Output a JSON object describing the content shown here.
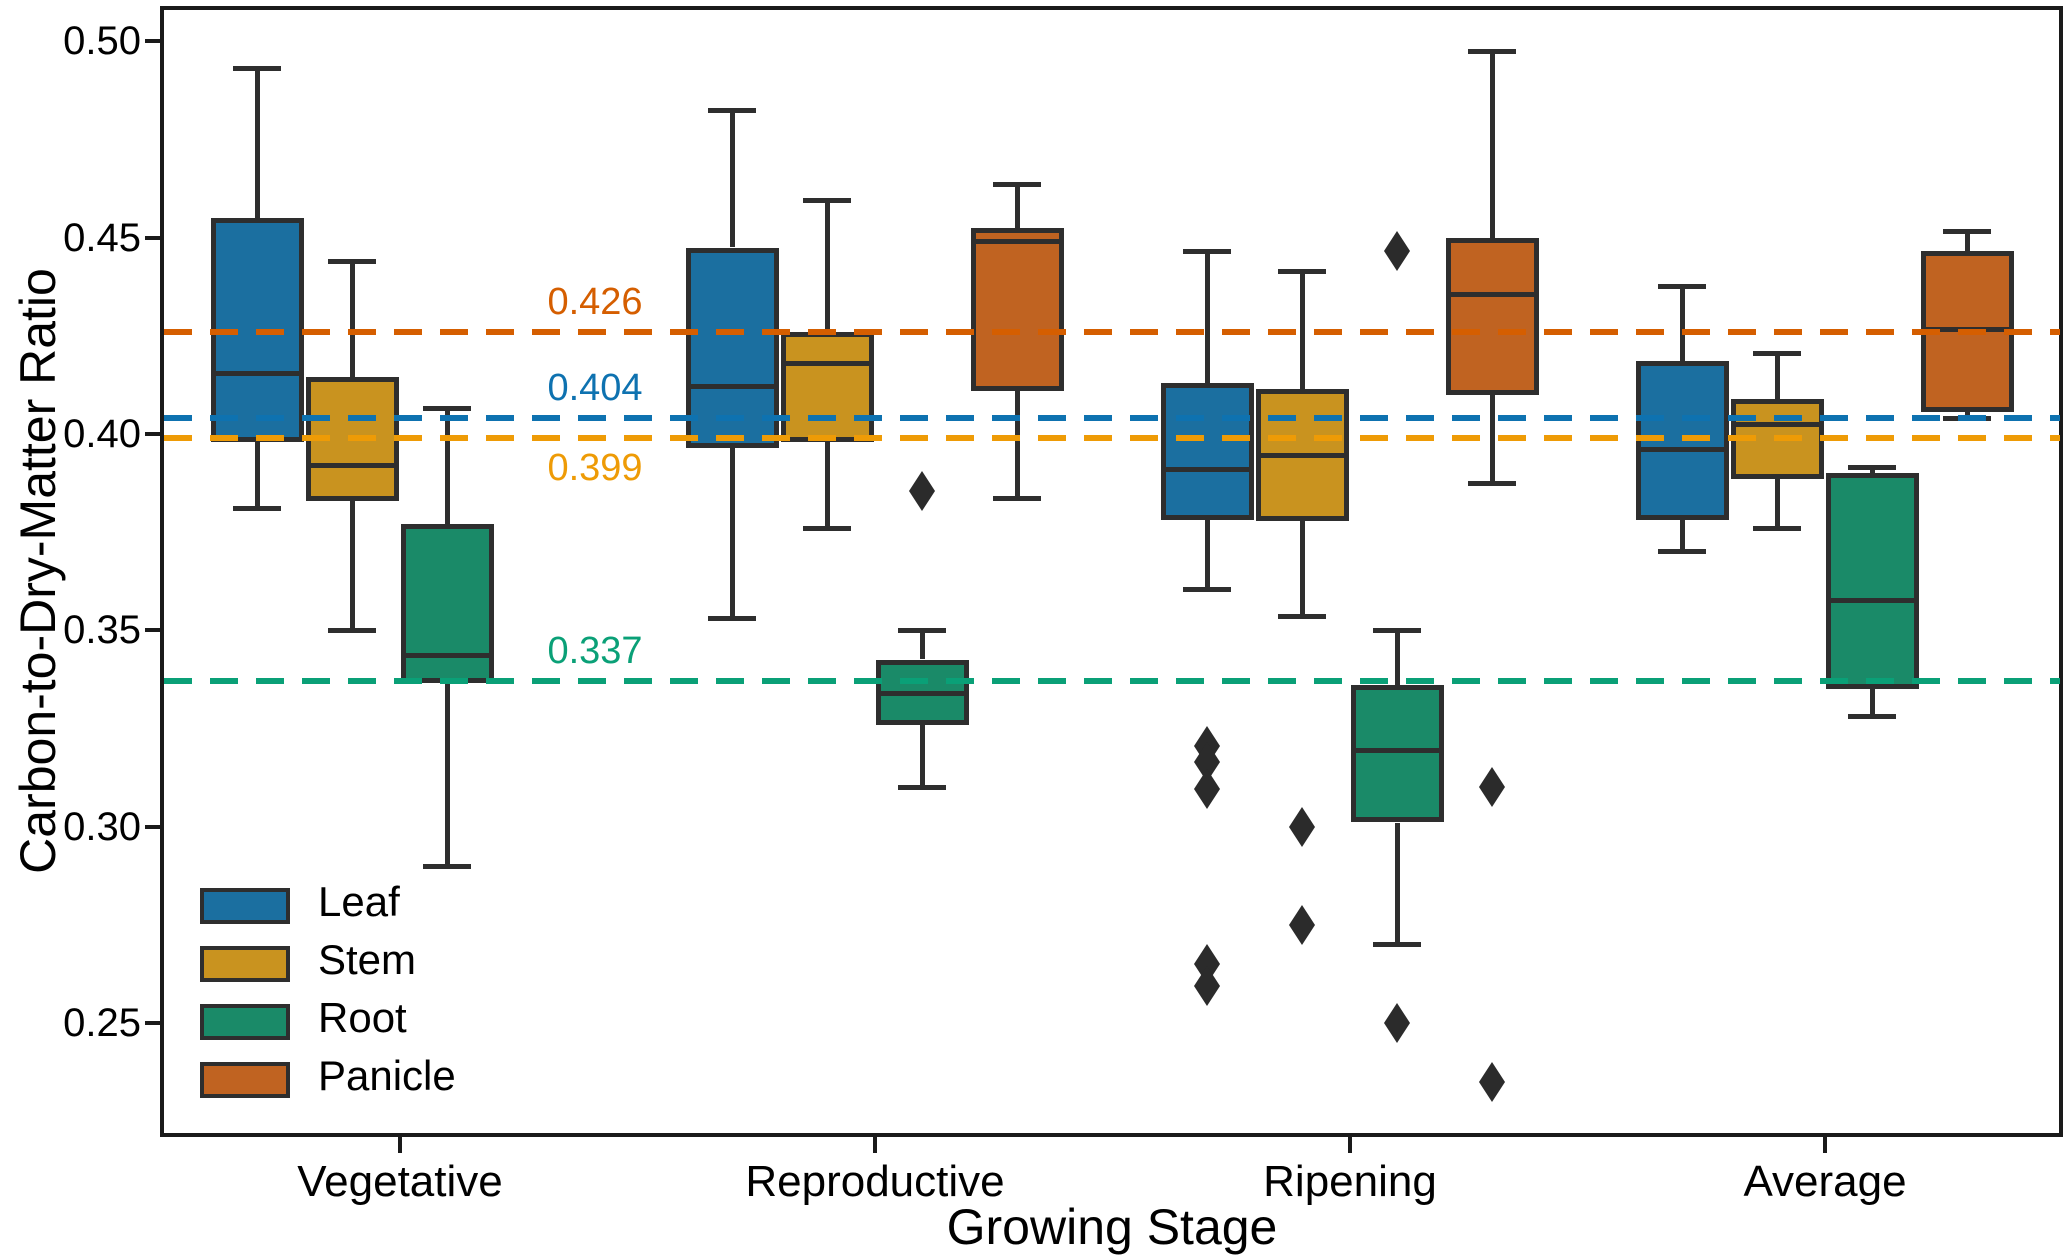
{
  "chart_data": {
    "type": "box",
    "title": "",
    "xlabel": "Growing Stage",
    "ylabel": "Carbon-to-Dry-Matter Ratio",
    "categories": [
      "Vegetative",
      "Reproductive",
      "Ripening",
      "Average"
    ],
    "yticks": [
      {
        "value": 0.25,
        "label": "0.25"
      },
      {
        "value": 0.3,
        "label": "0.30"
      },
      {
        "value": 0.35,
        "label": "0.35"
      },
      {
        "value": 0.4,
        "label": "0.40"
      },
      {
        "value": 0.45,
        "label": "0.45"
      },
      {
        "value": 0.5,
        "label": "0.50"
      }
    ],
    "ylim": [
      0.2215,
      0.5085
    ],
    "grid": false,
    "legend_position": "lower left",
    "legend_items": [
      "Leaf",
      "Stem",
      "Root",
      "Panicle"
    ],
    "series": [
      {
        "name": "Leaf",
        "line_color": "#0e72b0",
        "fill_color": "#1b6fa0",
        "boxes": [
          {
            "whislo": 0.381,
            "q1": 0.398,
            "med": 0.4155,
            "q3": 0.455,
            "whishi": 0.493,
            "fliers": []
          },
          {
            "whislo": 0.353,
            "q1": 0.3965,
            "med": 0.412,
            "q3": 0.4475,
            "whishi": 0.4825,
            "fliers": []
          },
          {
            "whislo": 0.3605,
            "q1": 0.378,
            "med": 0.391,
            "q3": 0.413,
            "whishi": 0.4465,
            "fliers": [
              0.3205,
              0.3165,
              0.3095,
              0.265,
              0.2595
            ]
          },
          {
            "whislo": 0.37,
            "q1": 0.378,
            "med": 0.396,
            "q3": 0.4185,
            "whishi": 0.4375,
            "fliers": []
          }
        ]
      },
      {
        "name": "Stem",
        "line_color": "#ee9b06",
        "fill_color": "#c9931f",
        "boxes": [
          {
            "whislo": 0.35,
            "q1": 0.383,
            "med": 0.392,
            "q3": 0.4145,
            "whishi": 0.444,
            "fliers": []
          },
          {
            "whislo": 0.376,
            "q1": 0.398,
            "med": 0.418,
            "q3": 0.426,
            "whishi": 0.4595,
            "fliers": []
          },
          {
            "whislo": 0.3535,
            "q1": 0.378,
            "med": 0.3945,
            "q3": 0.4115,
            "whishi": 0.4415,
            "fliers": [
              0.3,
              0.275
            ]
          },
          {
            "whislo": 0.376,
            "q1": 0.3885,
            "med": 0.4025,
            "q3": 0.409,
            "whishi": 0.4205,
            "fliers": []
          }
        ]
      },
      {
        "name": "Root",
        "line_color": "#0aa077",
        "fill_color": "#1a8a68",
        "boxes": [
          {
            "whislo": 0.29,
            "q1": 0.3365,
            "med": 0.3435,
            "q3": 0.377,
            "whishi": 0.4065,
            "fliers": []
          },
          {
            "whislo": 0.31,
            "q1": 0.326,
            "med": 0.334,
            "q3": 0.3425,
            "whishi": 0.35,
            "fliers": [
              0.3855
            ]
          },
          {
            "whislo": 0.27,
            "q1": 0.301,
            "med": 0.3195,
            "q3": 0.336,
            "whishi": 0.35,
            "fliers": [
              0.4465,
              0.25
            ]
          },
          {
            "whislo": 0.328,
            "q1": 0.335,
            "med": 0.3575,
            "q3": 0.39,
            "whishi": 0.3915,
            "fliers": []
          }
        ]
      },
      {
        "name": "Panicle",
        "line_color": "#d55e00",
        "fill_color": "#c06321",
        "boxes": [
          null,
          {
            "whislo": 0.3835,
            "q1": 0.411,
            "med": 0.449,
            "q3": 0.4525,
            "whishi": 0.4635,
            "fliers": []
          },
          {
            "whislo": 0.3875,
            "q1": 0.41,
            "med": 0.4355,
            "q3": 0.45,
            "whishi": 0.4975,
            "fliers": [
              0.31,
              0.235
            ]
          },
          {
            "whislo": 0.404,
            "q1": 0.4055,
            "med": 0.4265,
            "q3": 0.4465,
            "whishi": 0.4515,
            "fliers": []
          }
        ]
      }
    ],
    "reference_lines": [
      {
        "value": 0.426,
        "label": "0.426",
        "color": "#d55e00",
        "label_side": "above"
      },
      {
        "value": 0.404,
        "label": "0.404",
        "color": "#0e72b0",
        "label_side": "above"
      },
      {
        "value": 0.399,
        "label": "0.399",
        "color": "#ee9b06",
        "label_side": "below"
      },
      {
        "value": 0.337,
        "label": "0.337",
        "color": "#0aa077",
        "label_side": "above"
      }
    ],
    "reference_label_x_frac": 0.228
  }
}
